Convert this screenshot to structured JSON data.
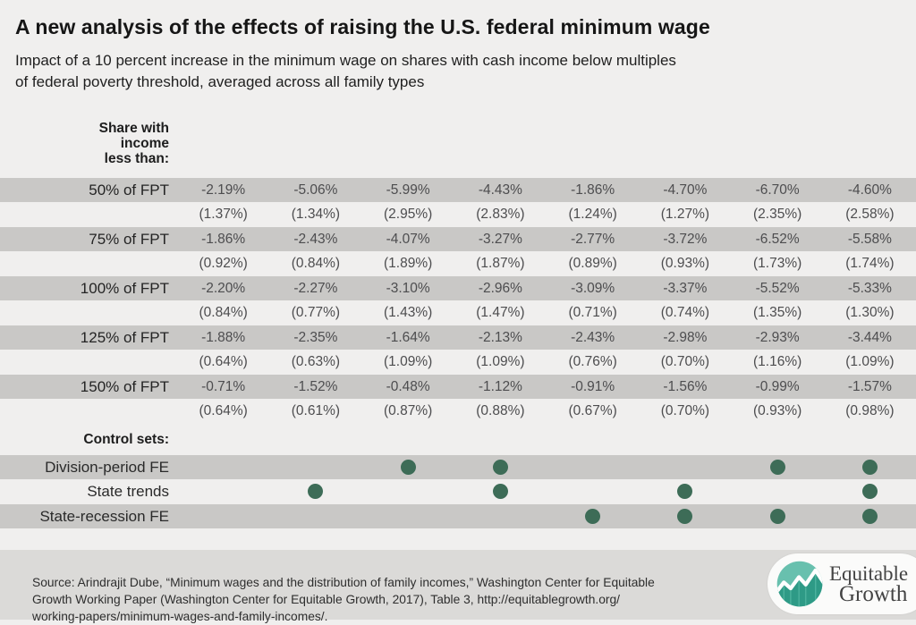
{
  "header": {
    "title": "A new analysis of the effects of raising the U.S. federal minimum wage",
    "subtitle": "Impact of a 10 percent increase in the minimum wage on shares with cash income below multiples\nof federal poverty threshold, averaged across all family types"
  },
  "chart_data": {
    "type": "table",
    "title": "A new analysis of the effects of raising the U.S. federal minimum wage",
    "subtitle": "Impact of a 10 percent increase in the minimum wage on shares with cash income below multiples of federal poverty threshold, averaged across all family types",
    "row_header": "Share with\nincome\nless than:",
    "num_specifications": 8,
    "rows": [
      {
        "label": "50% of FPT",
        "estimates": [
          "-2.19%",
          "-5.06%",
          "-5.99%",
          "-4.43%",
          "-1.86%",
          "-4.70%",
          "-6.70%",
          "-4.60%"
        ],
        "standard_errors": [
          "(1.37%)",
          "(1.34%)",
          "(2.95%)",
          "(2.83%)",
          "(1.24%)",
          "(1.27%)",
          "(2.35%)",
          "(2.58%)"
        ]
      },
      {
        "label": "75% of FPT",
        "estimates": [
          "-1.86%",
          "-2.43%",
          "-4.07%",
          "-3.27%",
          "-2.77%",
          "-3.72%",
          "-6.52%",
          "-5.58%"
        ],
        "standard_errors": [
          "(0.92%)",
          "(0.84%)",
          "(1.89%)",
          "(1.87%)",
          "(0.89%)",
          "(0.93%)",
          "(1.73%)",
          "(1.74%)"
        ]
      },
      {
        "label": "100% of FPT",
        "estimates": [
          "-2.20%",
          "-2.27%",
          "-3.10%",
          "-2.96%",
          "-3.09%",
          "-3.37%",
          "-5.52%",
          "-5.33%"
        ],
        "standard_errors": [
          "(0.84%)",
          "(0.77%)",
          "(1.43%)",
          "(1.47%)",
          "(0.71%)",
          "(0.74%)",
          "(1.35%)",
          "(1.30%)"
        ]
      },
      {
        "label": "125% of FPT",
        "estimates": [
          "-1.88%",
          "-2.35%",
          "-1.64%",
          "-2.13%",
          "-2.43%",
          "-2.98%",
          "-2.93%",
          "-3.44%"
        ],
        "standard_errors": [
          "(0.64%)",
          "(0.63%)",
          "(1.09%)",
          "(1.09%)",
          "(0.76%)",
          "(0.70%)",
          "(1.16%)",
          "(1.09%)"
        ]
      },
      {
        "label": "150% of FPT",
        "estimates": [
          "-0.71%",
          "-1.52%",
          "-0.48%",
          "-1.12%",
          "-0.91%",
          "-1.56%",
          "-0.99%",
          "-1.57%"
        ],
        "standard_errors": [
          "(0.64%)",
          "(0.61%)",
          "(0.87%)",
          "(0.88%)",
          "(0.67%)",
          "(0.70%)",
          "(0.93%)",
          "(0.98%)"
        ]
      }
    ],
    "control_sets_label": "Control sets:",
    "control_sets": [
      {
        "label": "Division-period FE",
        "dots": [
          0,
          0,
          1,
          1,
          0,
          0,
          1,
          1
        ]
      },
      {
        "label": "State trends",
        "dots": [
          0,
          1,
          0,
          1,
          0,
          1,
          0,
          1
        ]
      },
      {
        "label": "State-recession FE",
        "dots": [
          0,
          0,
          0,
          0,
          1,
          1,
          1,
          1
        ]
      }
    ]
  },
  "footer": {
    "source": "Source: Arindrajit Dube, “Minimum wages and the distribution of family incomes,” Washington Center for Equitable\nGrowth Working Paper (Washington Center for Equitable Growth, 2017), Table 3, http://equitablegrowth.org/\nworking-papers/minimum-wages-and-family-incomes/.",
    "logo": {
      "line1": "Equitable",
      "line2": "Growth"
    }
  },
  "colors": {
    "page_bg": "#f0efee",
    "stripe": "#c9c8c6",
    "dot_green": "#3d6c57",
    "footer_bg": "#dbdad8",
    "logo_teal_light": "#68c0ae",
    "logo_teal_dark": "#2e9a86"
  }
}
